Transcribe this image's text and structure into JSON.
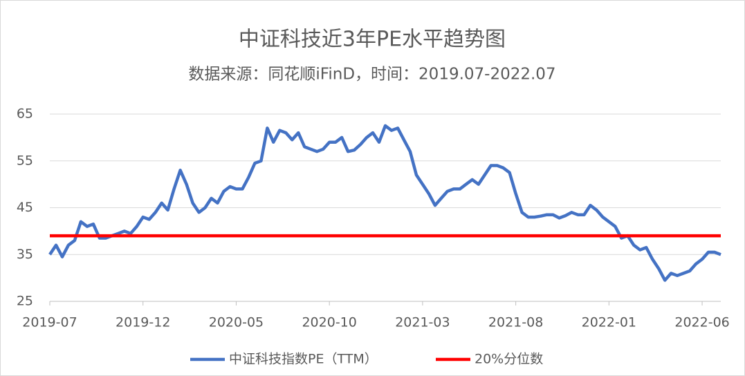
{
  "chart_data": {
    "type": "line",
    "title": "中证科技近3年PE水平趋势图",
    "subtitle": "数据来源：同花顺iFinD，时间：2019.07-2022.07",
    "categories": [
      "2019-07",
      null,
      null,
      null,
      null,
      null,
      null,
      null,
      null,
      null,
      null,
      null,
      null,
      null,
      null,
      "2019-12",
      null,
      null,
      null,
      null,
      null,
      null,
      null,
      null,
      null,
      null,
      null,
      null,
      null,
      null,
      "2020-05",
      null,
      null,
      null,
      null,
      null,
      null,
      null,
      null,
      null,
      null,
      null,
      null,
      null,
      null,
      "2020-10",
      null,
      null,
      null,
      null,
      null,
      null,
      null,
      null,
      null,
      null,
      null,
      null,
      null,
      null,
      "2021-03",
      null,
      null,
      null,
      null,
      null,
      null,
      null,
      null,
      null,
      null,
      null,
      null,
      null,
      null,
      "2021-08",
      null,
      null,
      null,
      null,
      null,
      null,
      null,
      null,
      null,
      null,
      null,
      null,
      null,
      null,
      "2022-01",
      null,
      null,
      null,
      null,
      null,
      null,
      null,
      null,
      null,
      null,
      null,
      null,
      null,
      null,
      "2022-06",
      null,
      null,
      null
    ],
    "series": [
      {
        "name": "中证科技指数PE（TTM）",
        "color": "#4472c4",
        "width": 4.5,
        "values": [
          35,
          37,
          34.5,
          37,
          38,
          42,
          41,
          41.5,
          38.5,
          38.5,
          39,
          39.5,
          40,
          39.5,
          41,
          43,
          42.5,
          44,
          46,
          44.5,
          49,
          53,
          50,
          46,
          44,
          45,
          47,
          46,
          48.5,
          49.5,
          49,
          49,
          51.5,
          54.5,
          55,
          62,
          59,
          61.5,
          61,
          59.5,
          61,
          58,
          57.5,
          57,
          57.5,
          59,
          59,
          60,
          57,
          57.3,
          58.5,
          60,
          61,
          59,
          62.5,
          61.5,
          62,
          59.5,
          57,
          52,
          50,
          48,
          45.5,
          47,
          48.5,
          49,
          49,
          50,
          51,
          50,
          52,
          54,
          54,
          53.5,
          52.5,
          48,
          44,
          43,
          43,
          43.2,
          43.5,
          43.5,
          42.8,
          43.3,
          44,
          43.5,
          43.5,
          45.5,
          44.5,
          43,
          42,
          41,
          38.5,
          39,
          37,
          36,
          36.5,
          34,
          32,
          29.5,
          31,
          30.5,
          31,
          31.5,
          33,
          34,
          35.5,
          35.5,
          35
        ]
      },
      {
        "name": "20%分位数",
        "color": "#ff0000",
        "width": 4.5,
        "values": [
          39,
          39,
          39,
          39,
          39,
          39,
          39,
          39,
          39,
          39,
          39,
          39,
          39,
          39,
          39,
          39,
          39,
          39,
          39,
          39,
          39,
          39,
          39,
          39,
          39,
          39,
          39,
          39,
          39,
          39,
          39,
          39,
          39,
          39,
          39,
          39,
          39,
          39,
          39,
          39,
          39,
          39,
          39,
          39,
          39,
          39,
          39,
          39,
          39,
          39,
          39,
          39,
          39,
          39,
          39,
          39,
          39,
          39,
          39,
          39,
          39,
          39,
          39,
          39,
          39,
          39,
          39,
          39,
          39,
          39,
          39,
          39,
          39,
          39,
          39,
          39,
          39,
          39,
          39,
          39,
          39,
          39,
          39,
          39,
          39,
          39,
          39,
          39,
          39,
          39,
          39,
          39,
          39,
          39,
          39,
          39,
          39,
          39,
          39,
          39,
          39,
          39,
          39,
          39,
          39,
          39,
          39,
          39,
          39
        ]
      }
    ],
    "ylim": [
      25,
      65
    ],
    "yticks": [
      25,
      35,
      45,
      55,
      65
    ],
    "grid": true,
    "legend": "bottom"
  }
}
